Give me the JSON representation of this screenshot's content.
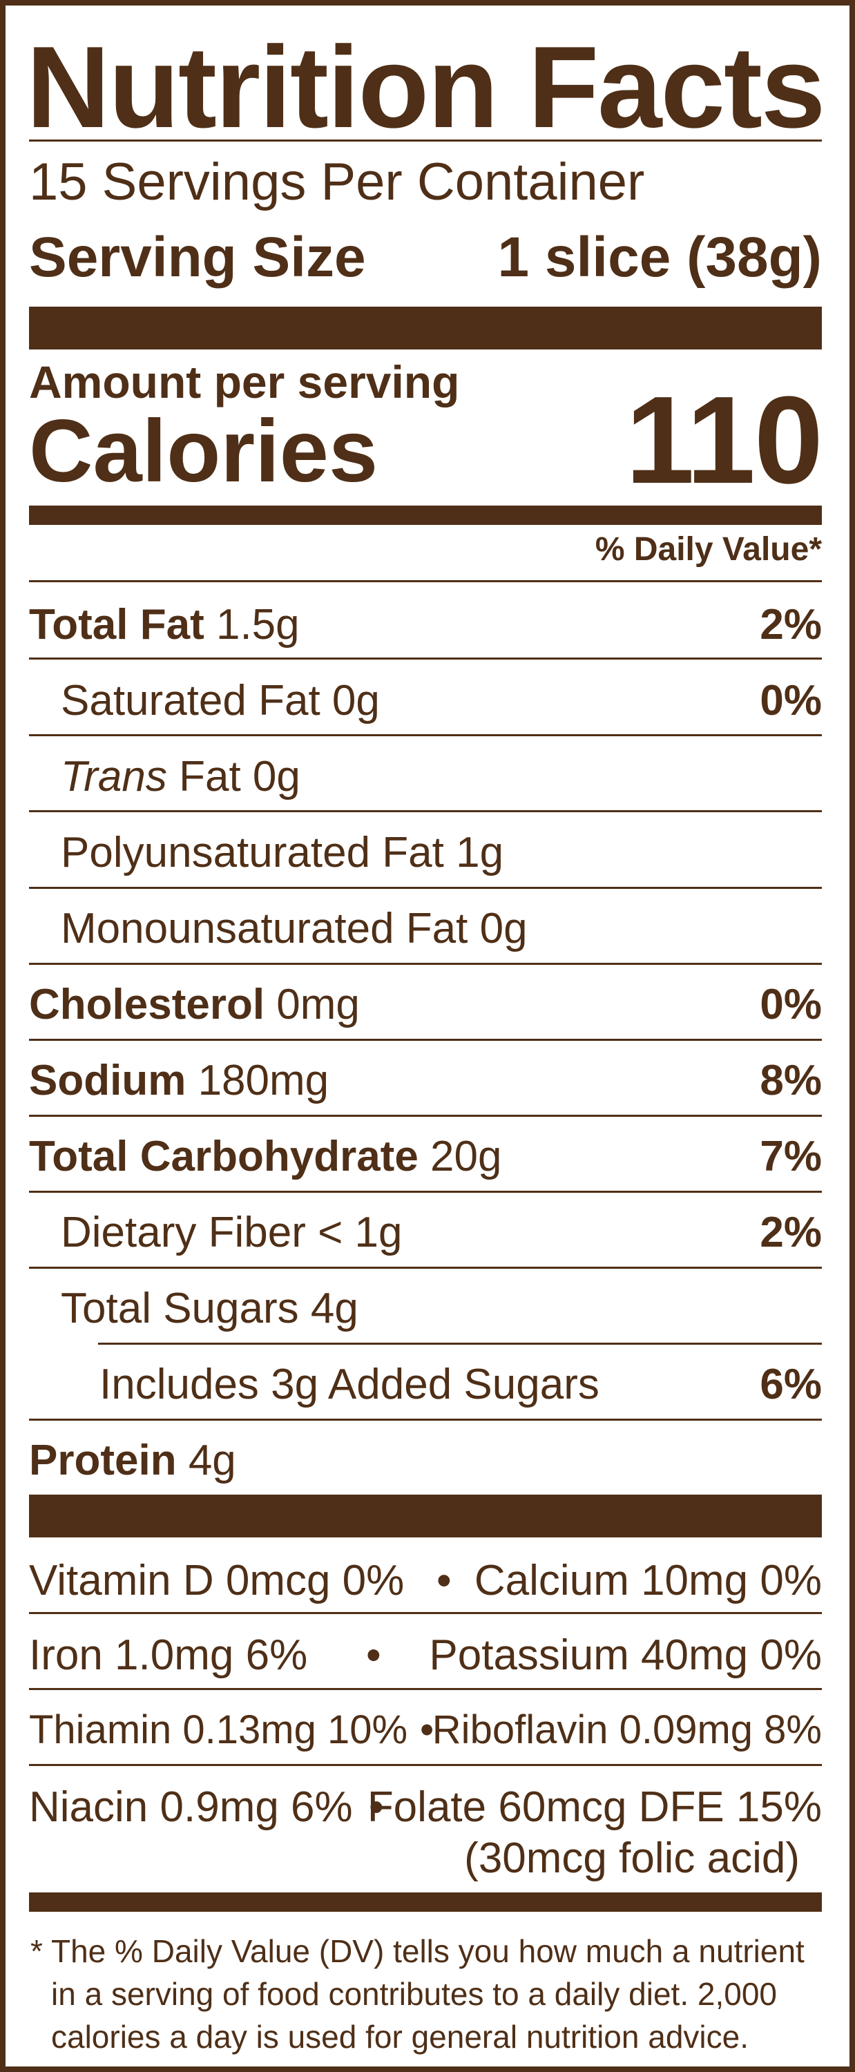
{
  "title": "Nutrition Facts",
  "servings_per_container": "15 Servings Per Container",
  "serving_size": {
    "label": "Serving Size",
    "value": "1 slice (38g)"
  },
  "amount_per_serving": "Amount per serving",
  "calories": {
    "label": "Calories",
    "value": "110"
  },
  "daily_value_header": "% Daily Value*",
  "nutrients": {
    "total_fat": {
      "label": "Total Fat",
      "amount": "1.5g",
      "dv": "2%"
    },
    "saturated_fat": {
      "label": "Saturated Fat 0g",
      "dv": "0%"
    },
    "trans_fat": {
      "label_italic": "Trans",
      "label_rest": "Fat 0g"
    },
    "polyunsaturated_fat": {
      "label": "Polyunsaturated Fat 1g"
    },
    "monounsaturated_fat": {
      "label": "Monounsaturated Fat 0g"
    },
    "cholesterol": {
      "label": "Cholesterol",
      "amount": "0mg",
      "dv": "0%"
    },
    "sodium": {
      "label": "Sodium",
      "amount": "180mg",
      "dv": "8%"
    },
    "total_carbohydrate": {
      "label": "Total Carbohydrate",
      "amount": "20g",
      "dv": "7%"
    },
    "dietary_fiber": {
      "label": "Dietary Fiber < 1g",
      "dv": "2%"
    },
    "total_sugars": {
      "label": "Total Sugars 4g"
    },
    "added_sugars": {
      "label": "Includes 3g Added Sugars",
      "dv": "6%"
    },
    "protein": {
      "label": "Protein",
      "amount": "4g"
    }
  },
  "vitamins": [
    {
      "left": "Vitamin D 0mcg 0%",
      "right": "Calcium 10mg 0%"
    },
    {
      "left": "Iron 1.0mg 6%",
      "right": "Potassium 40mg 0%"
    },
    {
      "left": "Thiamin 0.13mg 10%",
      "right": "Riboflavin 0.09mg 8%"
    },
    {
      "left": "Niacin 0.9mg 6%",
      "right": "Folate 60mcg DFE 15%",
      "right_sub": "(30mcg folic acid)"
    }
  ],
  "bullet": "•",
  "footnote": {
    "asterisk": "*",
    "line1": "The % Daily Value (DV) tells you how much a nutrient",
    "line2": "in a serving of food contributes to a daily diet. 2,000",
    "line3": "calories a day is used for general nutrition advice."
  },
  "colors": {
    "ink": "#4f2f17",
    "background": "#ffffff"
  }
}
